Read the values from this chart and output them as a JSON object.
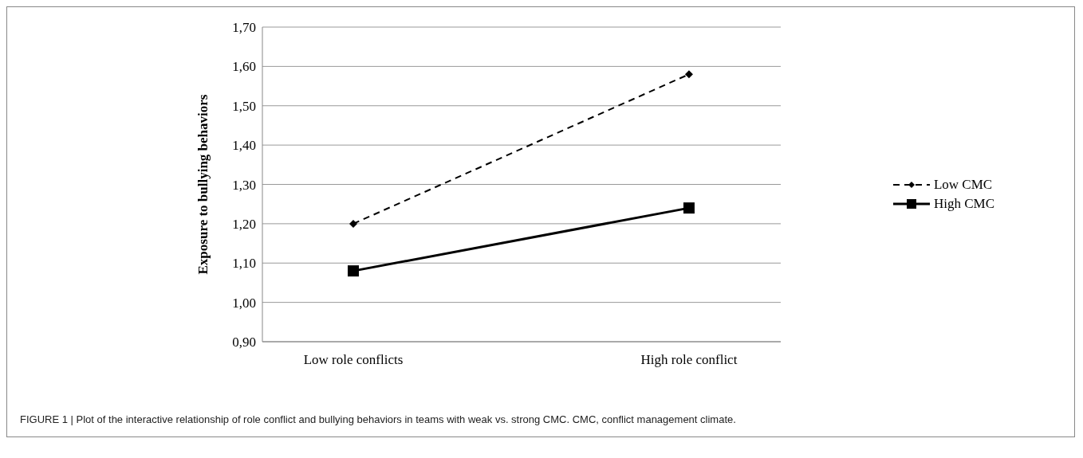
{
  "chart_data": {
    "type": "line",
    "ylabel": "Exposure to bullying behaviors",
    "categories": [
      "Low role conflicts",
      "High role conflict"
    ],
    "series": [
      {
        "name": "Low CMC",
        "color": "#000000",
        "values": [
          1.2,
          1.58
        ],
        "marker": "diamond",
        "line_style": "dashed"
      },
      {
        "name": "High CMC",
        "color": "#000000",
        "values": [
          1.08,
          1.24
        ],
        "marker": "square",
        "line_style": "solid"
      }
    ],
    "ylim": [
      0.9,
      1.7
    ],
    "yticks": [
      {
        "value": 0.9,
        "label": "0,90"
      },
      {
        "value": 1.0,
        "label": "1,00"
      },
      {
        "value": 1.1,
        "label": "1,10"
      },
      {
        "value": 1.2,
        "label": "1,20"
      },
      {
        "value": 1.3,
        "label": "1,30"
      },
      {
        "value": 1.4,
        "label": "1,40"
      },
      {
        "value": 1.5,
        "label": "1,50"
      },
      {
        "value": 1.6,
        "label": "1,60"
      },
      {
        "value": 1.7,
        "label": "1,70"
      }
    ],
    "grid": "y",
    "legend": "right",
    "annotations": [
      "FIGURE 1 | Plot of the interactive relationship of role conflict and bullying behaviors in teams with weak vs. strong CMC. CMC, conflict management climate."
    ]
  }
}
